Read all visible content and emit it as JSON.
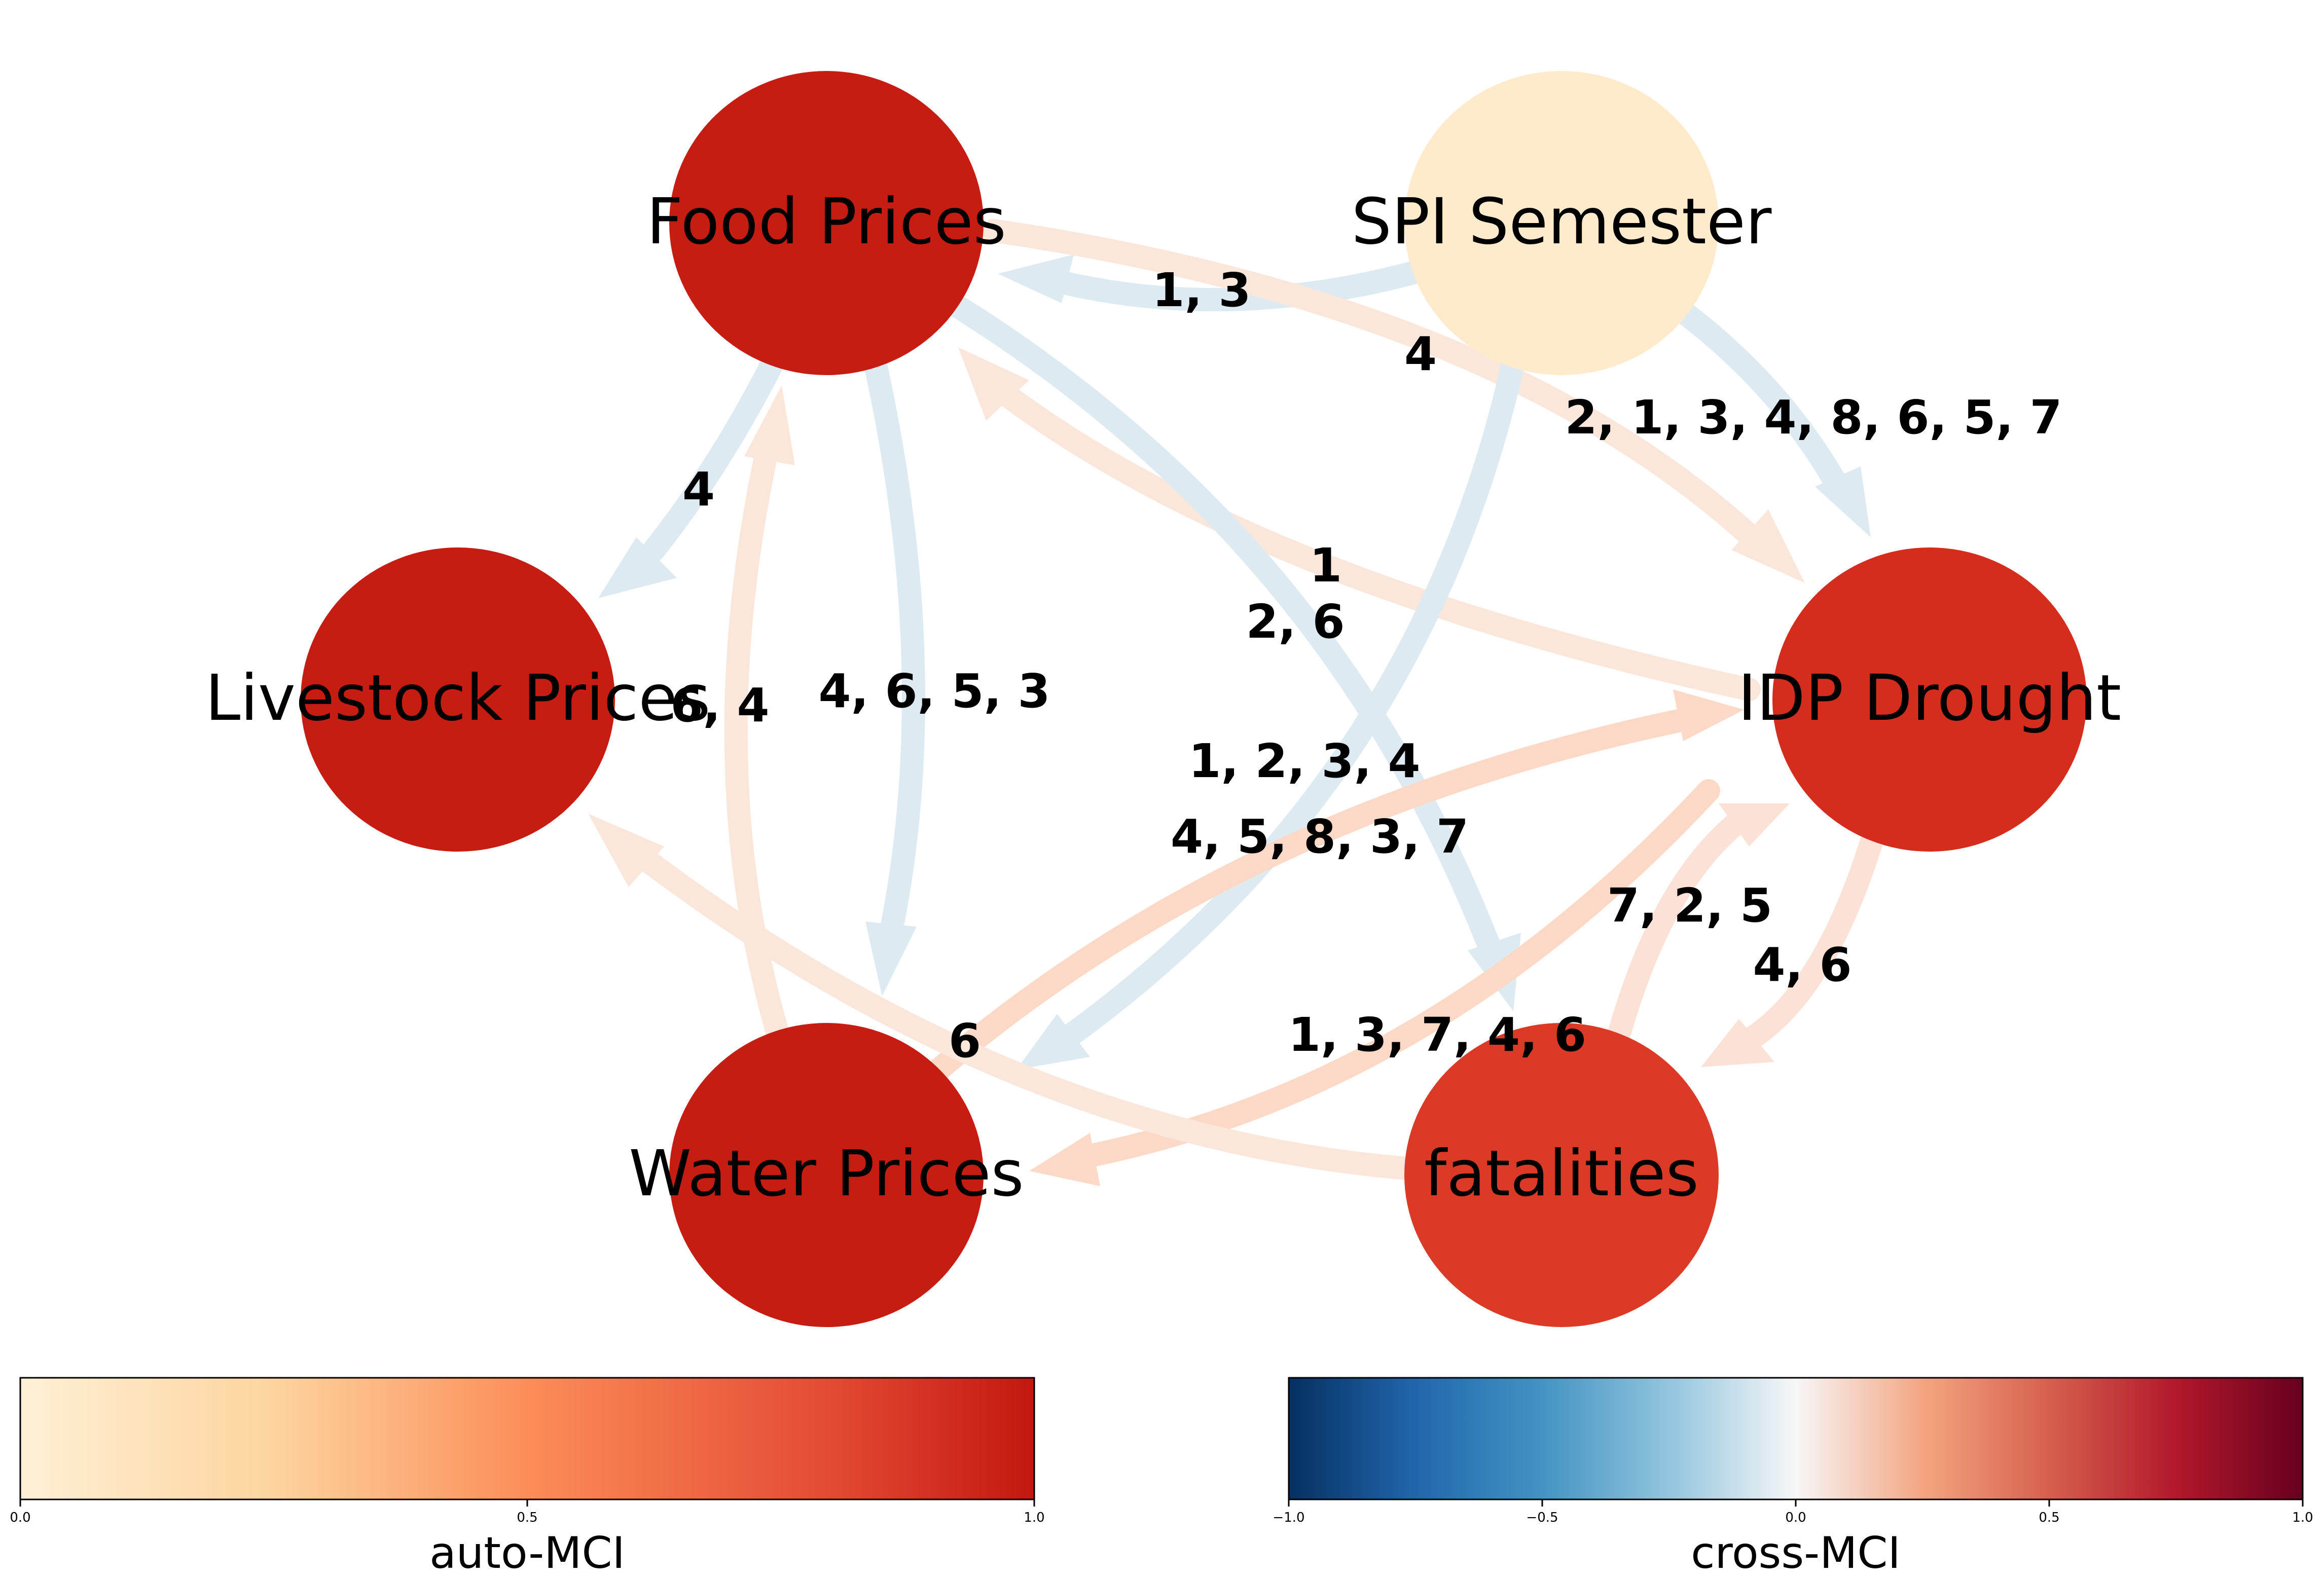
{
  "nodes": [
    {
      "id": "food",
      "label": "Food Prices",
      "auto_mci": 0.95
    },
    {
      "id": "spi",
      "label": "SPI Semester",
      "auto_mci": 0.05
    },
    {
      "id": "livestock",
      "label": "Livestock Prices",
      "auto_mci": 0.95
    },
    {
      "id": "idp",
      "label": "IDP Drought",
      "auto_mci": 0.78
    },
    {
      "id": "water",
      "label": "Water Prices",
      "auto_mci": 0.95
    },
    {
      "id": "fatalities",
      "label": "fatalities",
      "auto_mci": 0.72
    }
  ],
  "edges": [
    {
      "from": "spi",
      "to": "food",
      "lags": "1, 3",
      "color": "#deeaf2"
    },
    {
      "from": "food",
      "to": "idp",
      "lags": "4",
      "color": "#fbe6dc"
    },
    {
      "from": "spi",
      "to": "idp",
      "lags": "2, 1, 3, 4, 8, 6, 5, 7",
      "color": "#deeaf2"
    },
    {
      "from": "food",
      "to": "livestock",
      "lags": "4",
      "color": "#deeaf2"
    },
    {
      "from": "idp",
      "to": "food",
      "lags": "1",
      "color": "#fbe6dc"
    },
    {
      "from": "food",
      "to": "fatalities",
      "lags": "2, 6",
      "color": "#deeaf2"
    },
    {
      "from": "water",
      "to": "food",
      "lags": "6, 4",
      "color": "#fbe6dc"
    },
    {
      "from": "food",
      "to": "water",
      "lags": "4, 6, 5, 3",
      "color": "#deeaf2"
    },
    {
      "from": "spi",
      "to": "water",
      "lags": "1, 2, 3, 4",
      "color": "#deeaf2"
    },
    {
      "from": "water",
      "to": "idp",
      "lags": "4, 5, 8, 3, 7",
      "color": "#fcd9c6"
    },
    {
      "from": "fatalities",
      "to": "idp",
      "lags": "7, 2, 5",
      "color": "#fce2d6"
    },
    {
      "from": "idp",
      "to": "fatalities",
      "lags": "4, 6",
      "color": "#fce2d6"
    },
    {
      "from": "fatalities",
      "to": "water",
      "lags": "1, 3, 7, 4, 6",
      "color": "#fcd9c6"
    },
    {
      "from": "fatalities",
      "to": "livestock",
      "lags": "6",
      "color": "#fbe6dc"
    }
  ],
  "colorbars": {
    "auto": {
      "title": "auto-MCI",
      "ticks": [
        "0.0",
        "0.5",
        "1.0"
      ],
      "stops": [
        "#fff0d6",
        "#fdd49e",
        "#fc8d59",
        "#d7301f",
        "#c3170f"
      ]
    },
    "cross": {
      "title": "cross-MCI",
      "ticks": [
        "−1.0",
        "−0.5",
        "0.0",
        "0.5",
        "1.0"
      ],
      "stops": [
        "#053061",
        "#2166ac",
        "#4393c3",
        "#92c5de",
        "#f7f7f7",
        "#f4a582",
        "#d6604d",
        "#b2182b",
        "#67001f"
      ]
    }
  }
}
